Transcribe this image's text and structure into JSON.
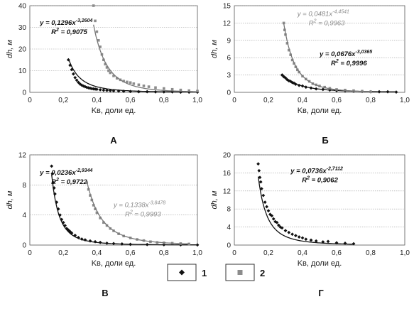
{
  "legend": {
    "items": [
      {
        "label": "1",
        "marker": "diamond",
        "color": "#111111"
      },
      {
        "label": "2",
        "marker": "square",
        "color": "#8c8c8c"
      }
    ]
  },
  "chart_data": [
    {
      "type": "scatter",
      "panel_label": "А",
      "ylabel": "dh, м",
      "xlabel": "Kв, доли ед.",
      "xlim": [
        0,
        1.0
      ],
      "ylim": [
        0,
        40
      ],
      "x_ticks": [
        "0",
        "0,2",
        "0,4",
        "0,6",
        "0,8",
        "1,0"
      ],
      "y_ticks": [
        "0",
        "10",
        "20",
        "30",
        "40"
      ],
      "grid": "horizontal",
      "series": [
        {
          "name": "1",
          "color": "#111111",
          "a": 0.1296,
          "b": -3.2604,
          "equation": [
            "y = 0,1296x",
            "-3,2604",
            "R",
            "2",
            " = 0,9075"
          ],
          "equation_pos": "top-left",
          "x": [
            0.23,
            0.24,
            0.25,
            0.26,
            0.27,
            0.28,
            0.29,
            0.3,
            0.31,
            0.32,
            0.33,
            0.34,
            0.35,
            0.36,
            0.37,
            0.38,
            0.39,
            0.4,
            0.42,
            0.44,
            0.46,
            0.48,
            0.5,
            0.53,
            0.56,
            0.6,
            0.65,
            0.7,
            0.75,
            0.8,
            0.85,
            0.9,
            0.95,
            1.0
          ],
          "y": [
            15.0,
            12.5,
            10.5,
            8.5,
            6.8,
            5.6,
            4.6,
            3.8,
            3.3,
            2.9,
            2.6,
            2.3,
            2.1,
            1.9,
            1.7,
            1.6,
            1.5,
            1.4,
            1.2,
            1.0,
            0.9,
            0.8,
            0.7,
            0.6,
            0.5,
            0.4,
            0.3,
            0.3,
            0.2,
            0.2,
            0.2,
            0.1,
            0.1,
            0.1
          ]
        },
        {
          "name": "2",
          "color": "#8c8c8c",
          "a": 0.3,
          "b": -4.8,
          "equation": [],
          "x": [
            0.38,
            0.39,
            0.4,
            0.41,
            0.42,
            0.43,
            0.44,
            0.45,
            0.46,
            0.47,
            0.48,
            0.5,
            0.52,
            0.54,
            0.56,
            0.58,
            0.6,
            0.62,
            0.65,
            0.68,
            0.71,
            0.75,
            0.8,
            0.85,
            0.9,
            0.95,
            1.0
          ],
          "y": [
            40.0,
            33.0,
            28.0,
            24.0,
            21.0,
            17.5,
            15.0,
            13.0,
            11.5,
            10.0,
            9.0,
            7.6,
            6.5,
            5.8,
            5.2,
            4.8,
            4.5,
            4.0,
            3.5,
            3.0,
            2.6,
            2.2,
            1.8,
            1.4,
            1.1,
            0.8,
            0.6
          ]
        }
      ]
    },
    {
      "type": "scatter",
      "panel_label": "Б",
      "ylabel": "dh, м",
      "xlabel": "Kв, доли ед.",
      "xlim": [
        0,
        1.0
      ],
      "ylim": [
        0,
        15
      ],
      "x_ticks": [
        "0",
        "0,2",
        "0,4",
        "0,6",
        "0,8",
        "1,0"
      ],
      "y_ticks": [
        "0",
        "3",
        "6",
        "9",
        "12",
        "15"
      ],
      "grid": "horizontal",
      "series": [
        {
          "name": "1",
          "color": "#111111",
          "a": 0.0676,
          "b": -3.0365,
          "equation": [
            "y = 0,0676x",
            "-3,0365",
            "R",
            "2",
            " = 0,9996"
          ],
          "equation_pos": "middle-right",
          "x": [
            0.28,
            0.29,
            0.3,
            0.31,
            0.32,
            0.33,
            0.34,
            0.35,
            0.36,
            0.38,
            0.4,
            0.42,
            0.45,
            0.48,
            0.52,
            0.56,
            0.6,
            0.65,
            0.7,
            0.75,
            0.8,
            0.85,
            0.9,
            0.95
          ],
          "y": [
            3.0,
            2.7,
            2.5,
            2.2,
            2.0,
            1.9,
            1.7,
            1.6,
            1.4,
            1.2,
            1.1,
            0.9,
            0.75,
            0.6,
            0.5,
            0.4,
            0.3,
            0.25,
            0.2,
            0.15,
            0.1,
            0.1,
            0.1,
            0.05
          ]
        },
        {
          "name": "2",
          "color": "#8c8c8c",
          "a": 0.0481,
          "b": -4.4541,
          "equation": [
            "y = 0,0481x",
            "-4,4541",
            "R",
            "2",
            " = 0,9963"
          ],
          "equation_pos": "top-center",
          "x": [
            0.29,
            0.295,
            0.3,
            0.31,
            0.32,
            0.33,
            0.34,
            0.35,
            0.36,
            0.37,
            0.38,
            0.4,
            0.42,
            0.44,
            0.46,
            0.48,
            0.5,
            0.53,
            0.56,
            0.6,
            0.65,
            0.7,
            0.75,
            0.8
          ],
          "y": [
            12.0,
            10.8,
            10.0,
            8.5,
            7.3,
            6.5,
            5.6,
            5.0,
            4.4,
            3.9,
            3.5,
            2.8,
            2.3,
            1.9,
            1.5,
            1.3,
            1.1,
            0.9,
            0.7,
            0.5,
            0.4,
            0.3,
            0.2,
            0.1
          ]
        }
      ]
    },
    {
      "type": "scatter",
      "panel_label": "В",
      "ylabel": "dh, м",
      "xlabel": "Kв, доли ед.",
      "xlim": [
        0,
        1.0
      ],
      "ylim": [
        0,
        12
      ],
      "x_ticks": [
        "0",
        "0,2",
        "0,4",
        "0,6",
        "0,8",
        "1,0"
      ],
      "y_ticks": [
        "0",
        "4",
        "8",
        "12"
      ],
      "grid": "horizontal",
      "series": [
        {
          "name": "1",
          "color": "#111111",
          "a": 0.0236,
          "b": -2.9344,
          "equation": [
            "y = 0,0236x",
            "-2,9344",
            "R",
            "2",
            " = 0,9722"
          ],
          "equation_pos": "top-left",
          "x": [
            0.13,
            0.135,
            0.14,
            0.145,
            0.15,
            0.16,
            0.17,
            0.18,
            0.19,
            0.2,
            0.21,
            0.22,
            0.23,
            0.24,
            0.25,
            0.27,
            0.29,
            0.31,
            0.33,
            0.36,
            0.39,
            0.42,
            0.46,
            0.5,
            0.55,
            0.6,
            0.7,
            0.8,
            0.9,
            1.0
          ],
          "y": [
            10.5,
            9.5,
            8.3,
            7.6,
            6.8,
            5.7,
            4.8,
            4.0,
            3.4,
            3.0,
            2.6,
            2.2,
            2.0,
            1.8,
            1.6,
            1.3,
            1.0,
            0.8,
            0.7,
            0.55,
            0.45,
            0.35,
            0.25,
            0.2,
            0.15,
            0.1,
            0.07,
            0.05,
            0.03,
            0.02
          ]
        },
        {
          "name": "2",
          "color": "#8c8c8c",
          "a": 0.1338,
          "b": -3.8478,
          "equation": [
            "y = 0,1338x",
            "-3,8478",
            "R",
            "2",
            " = 0,9993"
          ],
          "equation_pos": "middle-right",
          "x": [
            0.34,
            0.35,
            0.36,
            0.37,
            0.38,
            0.39,
            0.4,
            0.42,
            0.44,
            0.46,
            0.48,
            0.5,
            0.53,
            0.56,
            0.6,
            0.64,
            0.68,
            0.72,
            0.76,
            0.8,
            0.85,
            0.9,
            0.95
          ],
          "y": [
            8.3,
            7.4,
            6.6,
            6.0,
            5.3,
            4.8,
            4.3,
            3.6,
            3.0,
            2.6,
            2.2,
            1.9,
            1.5,
            1.2,
            0.95,
            0.75,
            0.6,
            0.45,
            0.35,
            0.3,
            0.25,
            0.2,
            0.15
          ]
        }
      ]
    },
    {
      "type": "scatter",
      "panel_label": "Г",
      "ylabel": "dh, м",
      "xlabel": "Kв, доли ед.",
      "xlim": [
        0,
        1.0
      ],
      "ylim": [
        0,
        20
      ],
      "x_ticks": [
        "0",
        "0,2",
        "0,4",
        "0,6",
        "0,8",
        "1,0"
      ],
      "y_ticks": [
        "0",
        "4",
        "8",
        "12",
        "16",
        "20"
      ],
      "grid": "horizontal",
      "series": [
        {
          "name": "1",
          "color": "#111111",
          "a": 0.0736,
          "b": -2.7112,
          "equation": [
            "y = 0,0736x",
            "-2,7112",
            "R",
            "2",
            " = 0,9062"
          ],
          "equation_pos": "top-right",
          "x": [
            0.14,
            0.145,
            0.15,
            0.155,
            0.16,
            0.17,
            0.18,
            0.19,
            0.2,
            0.21,
            0.22,
            0.23,
            0.24,
            0.25,
            0.26,
            0.27,
            0.28,
            0.3,
            0.32,
            0.34,
            0.36,
            0.38,
            0.4,
            0.42,
            0.45,
            0.48,
            0.52,
            0.55,
            0.6,
            0.65,
            0.7
          ],
          "y": [
            18.0,
            16.5,
            15.0,
            14.0,
            12.5,
            11.0,
            9.5,
            8.5,
            7.6,
            6.8,
            6.5,
            5.8,
            5.2,
            5.0,
            4.4,
            4.0,
            3.8,
            3.2,
            2.8,
            2.4,
            2.1,
            1.8,
            1.6,
            1.3,
            1.1,
            0.9,
            0.7,
            0.8,
            0.5,
            0.4,
            0.3
          ]
        }
      ]
    }
  ]
}
